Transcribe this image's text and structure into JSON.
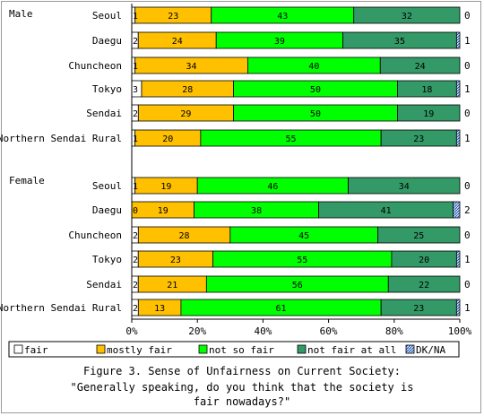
{
  "chart_data": {
    "type": "bar",
    "stacked": true,
    "normalized": true,
    "title": "Figure 3. Sense of Unfairness on Current Society:",
    "subtitle_lines": [
      "\"Generally speaking, do you think that the society is",
      "fair nowadays?\""
    ],
    "xlim": [
      0,
      100
    ],
    "x_ticks": [
      "0%",
      "20%",
      "40%",
      "60%",
      "80%",
      "100%"
    ],
    "grid": false,
    "legend_position": "bottom",
    "group_labels": [
      "Male",
      "Female"
    ],
    "categories": [
      "Seoul",
      "Daegu",
      "Chuncheon",
      "Tokyo",
      "Sendai",
      "Northern Sendai Rural"
    ],
    "series": [
      {
        "name": "fair",
        "color": "#ffffff",
        "values": {
          "Male": [
            1,
            2,
            1,
            3,
            2,
            1
          ],
          "Female": [
            1,
            0,
            2,
            2,
            2,
            2
          ]
        }
      },
      {
        "name": "mostly fair",
        "color": "#ffc000",
        "values": {
          "Male": [
            23,
            24,
            34,
            28,
            29,
            20
          ],
          "Female": [
            19,
            19,
            28,
            23,
            21,
            13
          ]
        }
      },
      {
        "name": "not so fair",
        "color": "#00ff00",
        "values": {
          "Male": [
            43,
            39,
            40,
            50,
            50,
            55
          ],
          "Female": [
            46,
            38,
            45,
            55,
            56,
            61
          ]
        }
      },
      {
        "name": "not fair at all",
        "color": "#339966",
        "values": {
          "Male": [
            32,
            35,
            24,
            18,
            19,
            23
          ],
          "Female": [
            34,
            41,
            25,
            20,
            22,
            23
          ]
        }
      },
      {
        "name": "DK/NA",
        "color": "#99ccff",
        "hatched": true,
        "values": {
          "Male": [
            0,
            1,
            0,
            1,
            0,
            1
          ],
          "Female": [
            0,
            2,
            0,
            1,
            0,
            1
          ]
        }
      }
    ]
  }
}
